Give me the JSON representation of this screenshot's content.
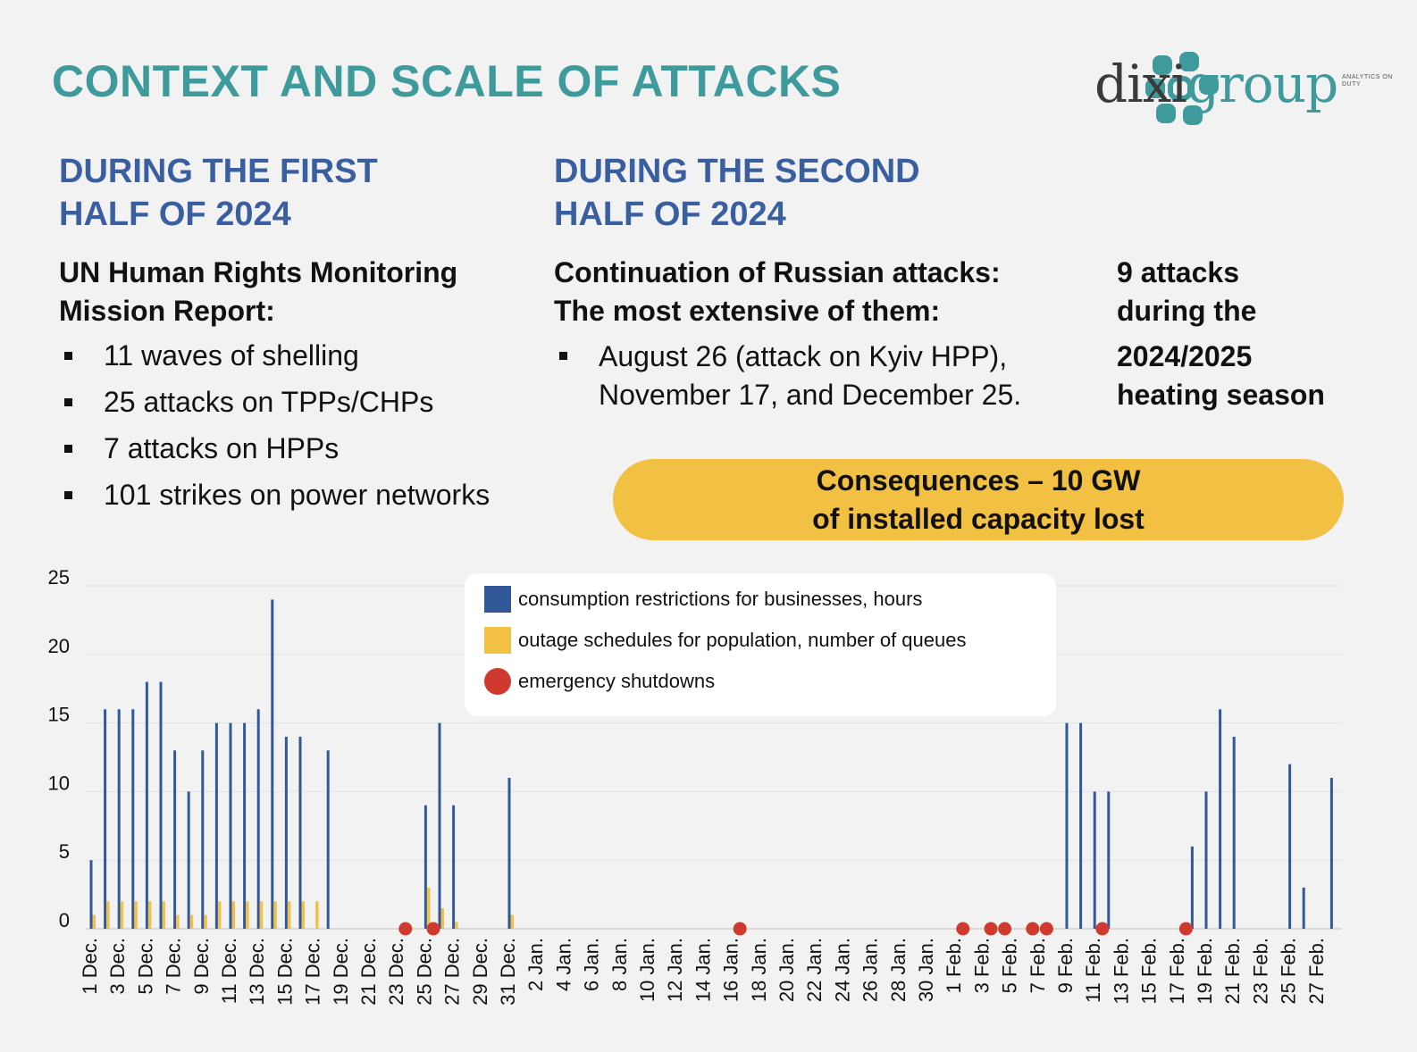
{
  "title": "CONTEXT AND SCALE OF ATTACKS",
  "logo": {
    "name": "dixigroup",
    "text_dixi": "dixi",
    "text_group": "group",
    "tagline": "ANALYTICS ON DUTY"
  },
  "left": {
    "heading": "DURING THE FIRST\nHALF OF 2024",
    "subheading": "UN Human Rights Monitoring\nMission Report:",
    "bullets": [
      "11 waves of shelling",
      "25 attacks on TPPs/CHPs",
      "7 attacks on HPPs",
      "101 strikes on power networks"
    ]
  },
  "middle": {
    "heading": "DURING THE SECOND\nHALF OF 2024",
    "subheading": "Continuation of Russian attacks:\nThe most extensive of them:",
    "bullet_line1": "August 26 (attack on Kyiv HPP),",
    "bullet_line2": "November 17, and December 25."
  },
  "right_note": {
    "line1": "9 attacks",
    "line2": "during the",
    "line3": "2024/2025",
    "line4": "heating season"
  },
  "consequences": "Consequences – 10 GW\nof installed capacity lost",
  "colors": {
    "teal": "#3f9a9c",
    "blue": "#3a5fa0",
    "bar_blue": "#33589a",
    "bar_yellow": "#f2c043",
    "red": "#d03a2e"
  },
  "chart_data": {
    "type": "bar",
    "ylim": [
      0,
      25
    ],
    "yticks": [
      "0",
      "5",
      "10",
      "15",
      "20",
      "25"
    ],
    "categories": [
      "1 Dec.",
      "2 Dec.",
      "3 Dec.",
      "4 Dec.",
      "5 Dec.",
      "6 Dec.",
      "7 Dec.",
      "8 Dec.",
      "9 Dec.",
      "10 Dec.",
      "11 Dec.",
      "12 Dec.",
      "13 Dec.",
      "14 Dec.",
      "15 Dec.",
      "16 Dec.",
      "17 Dec.",
      "18 Dec.",
      "19 Dec.",
      "20 Dec.",
      "21 Dec.",
      "22 Dec.",
      "23 Dec.",
      "24 Dec.",
      "25 Dec.",
      "26 Dec.",
      "27 Dec.",
      "28 Dec.",
      "29 Dec.",
      "30 Dec.",
      "31 Dec.",
      "1 Jan.",
      "2 Jan.",
      "3 Jan.",
      "4 Jan.",
      "5 Jan.",
      "6 Jan.",
      "7 Jan.",
      "8 Jan.",
      "9 Jan.",
      "10 Jan.",
      "11 Jan.",
      "12 Jan.",
      "13 Jan.",
      "14 Jan.",
      "15 Jan.",
      "16 Jan.",
      "17 Jan.",
      "18 Jan.",
      "19 Jan.",
      "20 Jan.",
      "21 Jan.",
      "22 Jan.",
      "23 Jan.",
      "24 Jan.",
      "25 Jan.",
      "26 Jan.",
      "27 Jan.",
      "28 Jan.",
      "29 Jan.",
      "30 Jan.",
      "31 Jan.",
      "1 Feb.",
      "2 Feb.",
      "3 Feb.",
      "4 Feb.",
      "5 Feb.",
      "6 Feb.",
      "7 Feb.",
      "8 Feb.",
      "9 Feb.",
      "10 Feb.",
      "11 Feb.",
      "12 Feb.",
      "13 Feb.",
      "14 Feb.",
      "15 Feb.",
      "16 Feb.",
      "17 Feb.",
      "18 Feb.",
      "19 Feb.",
      "20 Feb.",
      "21 Feb.",
      "22 Feb.",
      "23 Feb.",
      "24 Feb.",
      "25 Feb.",
      "26 Feb.",
      "27 Feb.",
      "28 Feb."
    ],
    "shown_tick_labels": [
      "1 Dec.",
      "3 Dec.",
      "5 Dec.",
      "7 Dec.",
      "9 Dec.",
      "11 Dec.",
      "13 Dec.",
      "15 Dec.",
      "17 Dec.",
      "19 Dec.",
      "21 Dec.",
      "23 Dec.",
      "25 Dec.",
      "27 Dec.",
      "29 Dec.",
      "31 Dec.",
      "2 Jan.",
      "4 Jan.",
      "6 Jan.",
      "8 Jan.",
      "10 Jan.",
      "12 Jan.",
      "14 Jan.",
      "16 Jan.",
      "18 Jan.",
      "20 Jan.",
      "22 Jan.",
      "24 Jan.",
      "26 Jan.",
      "28 Jan.",
      "30 Jan.",
      "1 Feb.",
      "3 Feb.",
      "5 Feb.",
      "7 Feb.",
      "9 Feb.",
      "11 Feb.",
      "13 Feb.",
      "15 Feb.",
      "17 Feb.",
      "19 Feb.",
      "21 Feb.",
      "23 Feb.",
      "25 Feb.",
      "27 Feb."
    ],
    "series": [
      {
        "name": "consumption restrictions for businesses, hours",
        "color": "#33589a",
        "values": [
          5,
          16,
          16,
          16,
          18,
          18,
          13,
          10,
          13,
          15,
          15,
          15,
          16,
          24,
          14,
          14,
          0,
          13,
          0,
          0,
          0,
          0,
          0,
          0,
          9,
          15,
          9,
          0,
          0,
          0,
          11,
          0,
          0,
          0,
          0,
          0,
          0,
          0,
          0,
          0,
          0,
          0,
          0,
          0,
          0,
          0,
          0,
          0,
          0,
          0,
          0,
          0,
          0,
          0,
          0,
          0,
          0,
          0,
          0,
          0,
          0,
          0,
          0,
          0,
          0,
          0,
          0,
          0,
          0,
          0,
          15,
          15,
          10,
          10,
          0,
          0,
          0,
          0,
          0,
          6,
          10,
          16,
          14,
          0,
          0,
          0,
          12,
          3,
          0,
          11
        ]
      },
      {
        "name": "outage schedules for population, number of queues",
        "color": "#f2c043",
        "values": [
          1,
          2,
          2,
          2,
          2,
          2,
          1,
          1,
          1,
          2,
          2,
          2,
          2,
          2,
          2,
          2,
          2,
          0,
          0,
          0,
          0,
          0,
          0,
          0,
          3,
          1.5,
          0.5,
          0,
          0,
          0,
          1,
          0,
          0,
          0,
          0,
          0,
          0,
          0,
          0,
          0,
          0,
          0,
          0,
          0,
          0,
          0,
          0,
          0,
          0,
          0,
          0,
          0,
          0,
          0,
          0,
          0,
          0,
          0,
          0,
          0,
          0,
          0,
          0,
          0,
          0,
          0,
          0,
          0,
          0,
          0,
          0,
          0,
          0,
          0,
          0,
          0,
          0,
          0,
          0,
          0,
          0,
          0,
          0,
          0,
          0,
          0,
          0,
          0,
          0,
          0
        ]
      },
      {
        "name": "emergency shutdowns",
        "color": "#d03a2e",
        "type": "marker",
        "dates": [
          "24 Dec.",
          "26 Dec.",
          "17 Jan.",
          "2 Feb.",
          "4 Feb.",
          "5 Feb.",
          "7 Feb.",
          "8 Feb.",
          "12 Feb.",
          "18 Feb."
        ]
      }
    ]
  }
}
